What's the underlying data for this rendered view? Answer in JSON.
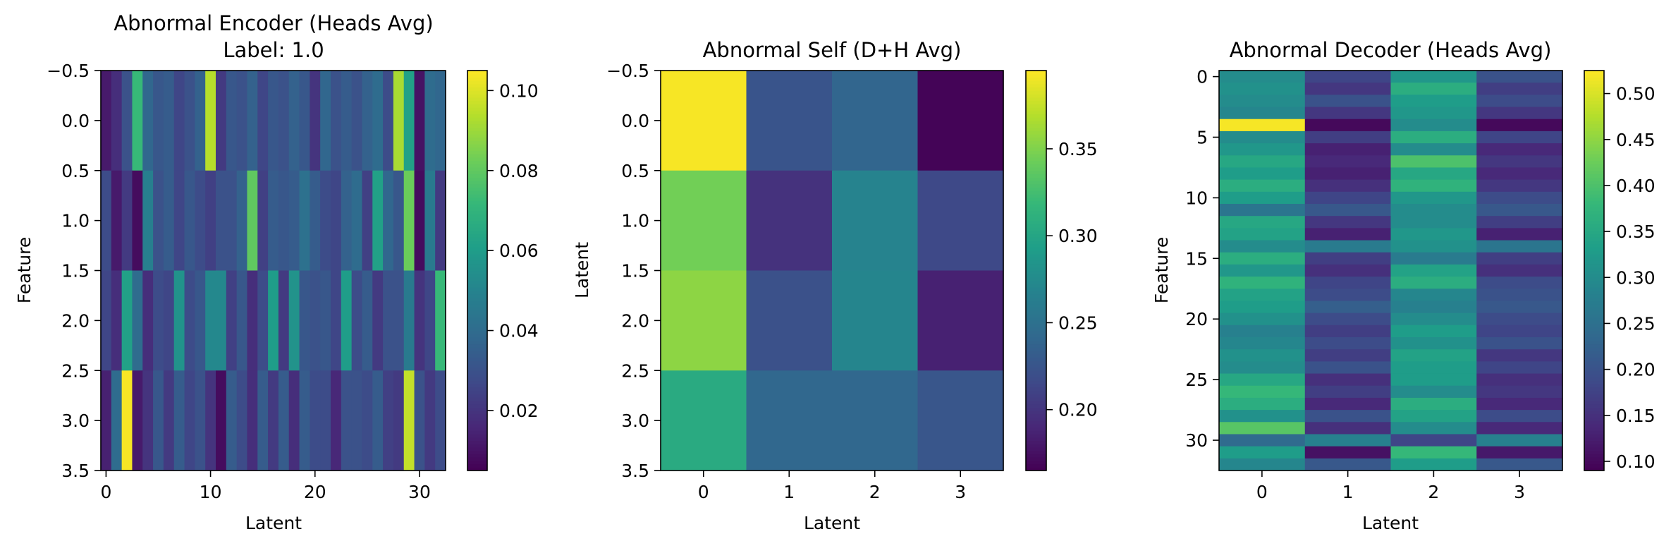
{
  "chart_data": [
    {
      "type": "heatmap",
      "title": "Abnormal Encoder (Heads Avg)",
      "subtitle": "Label: 1.0",
      "xlabel": "Latent",
      "ylabel": "Feature",
      "x_ticks": [
        "0",
        "10",
        "20",
        "30"
      ],
      "y_ticks": [
        "−0.5",
        "0.0",
        "0.5",
        "1.0",
        "1.5",
        "2.0",
        "2.5",
        "3.0",
        "3.5"
      ],
      "xlim": [
        -0.5,
        32.5
      ],
      "ylim": [
        3.5,
        -0.5
      ],
      "n_cols": 33,
      "n_rows": 4,
      "colormap": "viridis",
      "colorbar": {
        "min": 0.005,
        "max": 0.105,
        "ticks": [
          "0.02",
          "0.04",
          "0.06",
          "0.08",
          "0.10"
        ]
      },
      "values": [
        [
          0.012,
          0.018,
          0.03,
          0.072,
          0.038,
          0.032,
          0.034,
          0.026,
          0.03,
          0.036,
          0.094,
          0.022,
          0.032,
          0.03,
          0.036,
          0.026,
          0.032,
          0.03,
          0.036,
          0.032,
          0.02,
          0.038,
          0.03,
          0.034,
          0.03,
          0.036,
          0.04,
          0.028,
          0.092,
          0.062,
          0.01,
          0.04,
          0.038
        ],
        [
          0.028,
          0.012,
          0.022,
          0.008,
          0.048,
          0.03,
          0.034,
          0.026,
          0.032,
          0.028,
          0.024,
          0.03,
          0.03,
          0.036,
          0.08,
          0.024,
          0.034,
          0.032,
          0.034,
          0.042,
          0.034,
          0.028,
          0.026,
          0.036,
          0.04,
          0.024,
          0.062,
          0.038,
          0.032,
          0.082,
          0.008,
          0.046,
          0.022
        ],
        [
          0.026,
          0.018,
          0.062,
          0.04,
          0.018,
          0.028,
          0.026,
          0.056,
          0.028,
          0.032,
          0.052,
          0.052,
          0.024,
          0.032,
          0.018,
          0.028,
          0.06,
          0.022,
          0.056,
          0.032,
          0.03,
          0.032,
          0.026,
          0.06,
          0.028,
          0.034,
          0.022,
          0.03,
          0.03,
          0.046,
          0.02,
          0.026,
          0.072
        ],
        [
          0.014,
          0.04,
          0.104,
          0.012,
          0.02,
          0.032,
          0.022,
          0.034,
          0.026,
          0.03,
          0.02,
          0.008,
          0.034,
          0.028,
          0.018,
          0.034,
          0.022,
          0.034,
          0.018,
          0.034,
          0.028,
          0.028,
          0.016,
          0.03,
          0.03,
          0.028,
          0.034,
          0.024,
          0.022,
          0.096,
          0.03,
          0.022,
          0.028
        ]
      ]
    },
    {
      "type": "heatmap",
      "title": "Abnormal Self (D+H Avg)",
      "xlabel": "Latent",
      "ylabel": "Latent",
      "x_ticks": [
        "0",
        "1",
        "2",
        "3"
      ],
      "y_ticks": [
        "−0.5",
        "0.0",
        "0.5",
        "1.0",
        "1.5",
        "2.0",
        "2.5",
        "3.0",
        "3.5"
      ],
      "xlim": [
        -0.5,
        3.5
      ],
      "ylim": [
        3.5,
        -0.5
      ],
      "n_cols": 4,
      "n_rows": 4,
      "colormap": "viridis",
      "colorbar": {
        "min": 0.165,
        "max": 0.395,
        "ticks": [
          "0.20",
          "0.25",
          "0.30",
          "0.35"
        ]
      },
      "values": [
        [
          0.393,
          0.225,
          0.24,
          0.167
        ],
        [
          0.345,
          0.198,
          0.268,
          0.215
        ],
        [
          0.355,
          0.222,
          0.27,
          0.186
        ],
        [
          0.305,
          0.242,
          0.242,
          0.226
        ]
      ]
    },
    {
      "type": "heatmap",
      "title": "Abnormal Decoder (Heads Avg)",
      "xlabel": "Latent",
      "ylabel": "Feature",
      "x_ticks": [
        "0",
        "1",
        "2",
        "3"
      ],
      "y_ticks": [
        "0",
        "5",
        "10",
        "15",
        "20",
        "25",
        "30"
      ],
      "xlim": [
        -0.5,
        3.5
      ],
      "ylim": [
        32.5,
        -0.5
      ],
      "n_cols": 4,
      "n_rows": 33,
      "colormap": "viridis",
      "colorbar": {
        "min": 0.09,
        "max": 0.525,
        "ticks": [
          "0.10",
          "0.15",
          "0.20",
          "0.25",
          "0.30",
          "0.35",
          "0.40",
          "0.45",
          "0.50"
        ]
      },
      "values": [
        [
          0.3,
          0.18,
          0.32,
          0.2
        ],
        [
          0.31,
          0.16,
          0.36,
          0.17
        ],
        [
          0.3,
          0.2,
          0.33,
          0.19
        ],
        [
          0.29,
          0.16,
          0.32,
          0.16
        ],
        [
          0.52,
          0.1,
          0.3,
          0.1
        ],
        [
          0.3,
          0.17,
          0.36,
          0.18
        ],
        [
          0.32,
          0.13,
          0.3,
          0.14
        ],
        [
          0.35,
          0.14,
          0.4,
          0.16
        ],
        [
          0.33,
          0.13,
          0.35,
          0.14
        ],
        [
          0.36,
          0.15,
          0.37,
          0.16
        ],
        [
          0.33,
          0.18,
          0.32,
          0.19
        ],
        [
          0.26,
          0.21,
          0.3,
          0.21
        ],
        [
          0.35,
          0.16,
          0.3,
          0.17
        ],
        [
          0.34,
          0.13,
          0.32,
          0.13
        ],
        [
          0.3,
          0.27,
          0.31,
          0.26
        ],
        [
          0.36,
          0.17,
          0.27,
          0.17
        ],
        [
          0.32,
          0.15,
          0.34,
          0.15
        ],
        [
          0.37,
          0.18,
          0.36,
          0.19
        ],
        [
          0.34,
          0.19,
          0.29,
          0.2
        ],
        [
          0.33,
          0.22,
          0.28,
          0.21
        ],
        [
          0.31,
          0.19,
          0.3,
          0.19
        ],
        [
          0.28,
          0.17,
          0.33,
          0.18
        ],
        [
          0.29,
          0.19,
          0.31,
          0.2
        ],
        [
          0.31,
          0.17,
          0.34,
          0.16
        ],
        [
          0.3,
          0.2,
          0.33,
          0.18
        ],
        [
          0.35,
          0.15,
          0.33,
          0.15
        ],
        [
          0.38,
          0.17,
          0.3,
          0.16
        ],
        [
          0.36,
          0.14,
          0.36,
          0.14
        ],
        [
          0.31,
          0.2,
          0.34,
          0.19
        ],
        [
          0.41,
          0.15,
          0.3,
          0.14
        ],
        [
          0.24,
          0.28,
          0.18,
          0.28
        ],
        [
          0.33,
          0.11,
          0.38,
          0.12
        ],
        [
          0.29,
          0.21,
          0.33,
          0.21
        ]
      ]
    }
  ]
}
